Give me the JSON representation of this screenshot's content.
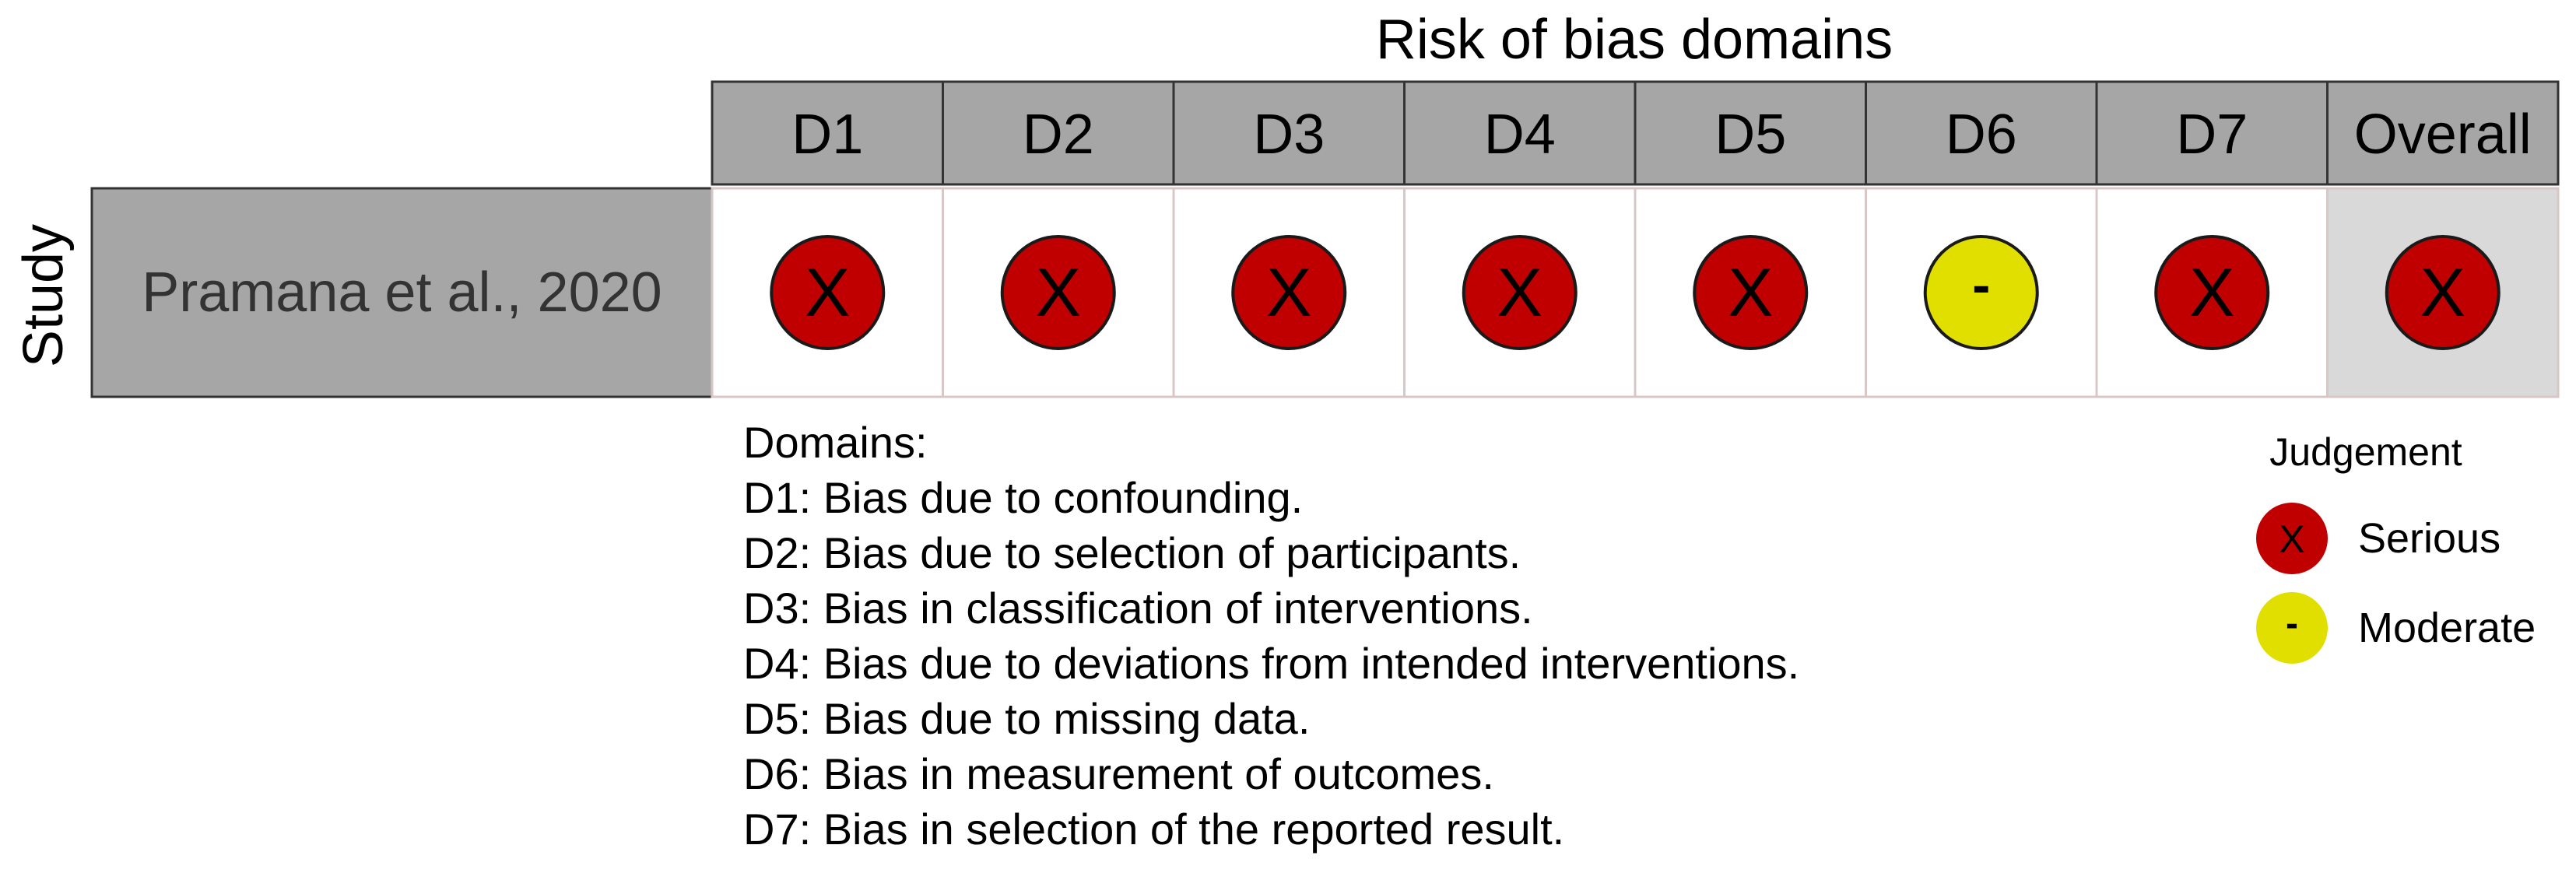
{
  "title": "Risk of bias domains",
  "y_axis_label": "Study",
  "columns": [
    "D1",
    "D2",
    "D3",
    "D4",
    "D5",
    "D6",
    "D7",
    "Overall"
  ],
  "rows": [
    {
      "study": "Pramana et al., 2020",
      "judgements": [
        "serious",
        "serious",
        "serious",
        "serious",
        "serious",
        "moderate",
        "serious",
        "serious"
      ]
    }
  ],
  "judgement_types": {
    "serious": {
      "symbol": "X",
      "label": "Serious",
      "color": "#c00000"
    },
    "moderate": {
      "symbol": "-",
      "label": "Moderate",
      "color": "#e1df00"
    }
  },
  "domains_heading": "Domains:",
  "domains": [
    "D1: Bias due to confounding.",
    "D2: Bias due to selection of participants.",
    "D3: Bias in classification of interventions.",
    "D4: Bias due to deviations from intended interventions.",
    "D5: Bias due to missing data.",
    "D6: Bias in measurement of outcomes.",
    "D7: Bias in selection of the reported result."
  ],
  "legend": {
    "title": "Judgement",
    "items": [
      "serious",
      "moderate"
    ]
  },
  "colors": {
    "header_fill": "#a6a6a6",
    "study_fill": "#a6a6a6",
    "overall_fill": "#d9d9d9",
    "cell_fill": "#ffffff"
  }
}
